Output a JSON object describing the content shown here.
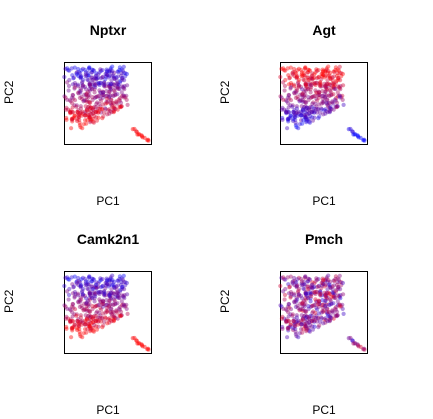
{
  "chart_data": [
    {
      "type": "scatter",
      "title": "Nptxr",
      "xlabel": "PC1",
      "ylabel": "PC2",
      "color_low": "#ff0000",
      "color_high": "#0000ff",
      "pattern": "blue-top"
    },
    {
      "type": "scatter",
      "title": "Agt",
      "xlabel": "PC1",
      "ylabel": "PC2",
      "color_low": "#ff0000",
      "color_high": "#0000ff",
      "pattern": "red-top"
    },
    {
      "type": "scatter",
      "title": "Camk2n1",
      "xlabel": "PC1",
      "ylabel": "PC2",
      "color_low": "#ff0000",
      "color_high": "#0000ff",
      "pattern": "blue-top"
    },
    {
      "type": "scatter",
      "title": "Pmch",
      "xlabel": "PC1",
      "ylabel": "PC2",
      "color_low": "#ff0000",
      "color_high": "#0000ff",
      "pattern": "mixed"
    }
  ]
}
